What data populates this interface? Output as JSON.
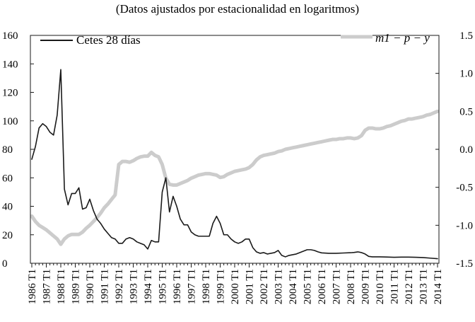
{
  "chart_data": {
    "type": "line",
    "subtitle": "(Datos ajustados por estacionalidad en logaritmos)",
    "x_tick_labels": [
      "1986 T1",
      "1987 T1",
      "1988 T1",
      "1989 T1",
      "1990 T1",
      "1991 T1",
      "1992 T1",
      "1993 T1",
      "1994 T1",
      "1995 T1",
      "1996 T1",
      "1997 T1",
      "1998 T1",
      "1999 T1",
      "2000 T1",
      "2001 T1",
      "2002 T1",
      "2003 T1",
      "2004 T1",
      "2005 T1",
      "2006 T1",
      "2007 T1",
      "2008 T1",
      "2009 T1",
      "2010 T1",
      "2011 T1",
      "2012 T1",
      "2013 T1",
      "2014 T1"
    ],
    "y_left": {
      "lim": [
        0,
        160
      ],
      "ticks": [
        0,
        20,
        40,
        60,
        80,
        100,
        120,
        140,
        160
      ],
      "tick_labels": [
        "0",
        "20",
        "40",
        "60",
        "80",
        "100",
        "120",
        "140",
        "160"
      ]
    },
    "y_right": {
      "lim": [
        -1.5,
        1.5
      ],
      "ticks": [
        -1.5,
        -1.0,
        -0.5,
        0.0,
        0.5,
        1.0,
        1.5
      ],
      "tick_labels": [
        "-1.5",
        "-1.0",
        "-0.5",
        "0.0",
        "0.5",
        "1.0",
        "1.5"
      ]
    },
    "series": [
      {
        "name": "Cetes 28 días",
        "axis": "left",
        "color": "#1a1a1a",
        "points": [
          [
            1986.0,
            73
          ],
          [
            1986.25,
            82
          ],
          [
            1986.5,
            95
          ],
          [
            1986.75,
            98
          ],
          [
            1987.0,
            96
          ],
          [
            1987.25,
            92
          ],
          [
            1987.5,
            90
          ],
          [
            1987.75,
            104
          ],
          [
            1988.0,
            136
          ],
          [
            1988.25,
            52
          ],
          [
            1988.5,
            41
          ],
          [
            1988.75,
            49
          ],
          [
            1989.0,
            49
          ],
          [
            1989.25,
            53
          ],
          [
            1989.5,
            38
          ],
          [
            1989.75,
            39
          ],
          [
            1990.0,
            45
          ],
          [
            1990.25,
            37
          ],
          [
            1990.5,
            31
          ],
          [
            1990.75,
            28
          ],
          [
            1991.0,
            24
          ],
          [
            1991.25,
            21
          ],
          [
            1991.5,
            18
          ],
          [
            1991.75,
            17
          ],
          [
            1992.0,
            14
          ],
          [
            1992.25,
            14
          ],
          [
            1992.5,
            17
          ],
          [
            1992.75,
            18
          ],
          [
            1993.0,
            17
          ],
          [
            1993.25,
            15
          ],
          [
            1993.5,
            14
          ],
          [
            1993.75,
            13
          ],
          [
            1994.0,
            10
          ],
          [
            1994.25,
            16
          ],
          [
            1994.5,
            15
          ],
          [
            1994.75,
            15
          ],
          [
            1995.0,
            50
          ],
          [
            1995.25,
            60
          ],
          [
            1995.5,
            36
          ],
          [
            1995.75,
            47
          ],
          [
            1996.0,
            40
          ],
          [
            1996.25,
            31
          ],
          [
            1996.5,
            27
          ],
          [
            1996.75,
            27
          ],
          [
            1997.0,
            22
          ],
          [
            1997.25,
            20
          ],
          [
            1997.5,
            19
          ],
          [
            1997.75,
            19
          ],
          [
            1998.0,
            19
          ],
          [
            1998.25,
            19
          ],
          [
            1998.5,
            28
          ],
          [
            1998.75,
            33
          ],
          [
            1999.0,
            28
          ],
          [
            1999.25,
            20
          ],
          [
            1999.5,
            20
          ],
          [
            1999.75,
            17
          ],
          [
            2000.0,
            15
          ],
          [
            2000.25,
            14
          ],
          [
            2000.5,
            15
          ],
          [
            2000.75,
            17
          ],
          [
            2001.0,
            17
          ],
          [
            2001.25,
            11
          ],
          [
            2001.5,
            8
          ],
          [
            2001.75,
            7
          ],
          [
            2002.0,
            7.5
          ],
          [
            2002.25,
            6.5
          ],
          [
            2002.5,
            7
          ],
          [
            2002.75,
            7.5
          ],
          [
            2003.0,
            9
          ],
          [
            2003.25,
            5.5
          ],
          [
            2003.5,
            4.5
          ],
          [
            2003.75,
            5.5
          ],
          [
            2004.0,
            6
          ],
          [
            2004.25,
            6.5
          ],
          [
            2004.5,
            7.5
          ],
          [
            2004.75,
            8.5
          ],
          [
            2005.0,
            9.5
          ],
          [
            2005.25,
            9.5
          ],
          [
            2005.5,
            9
          ],
          [
            2005.75,
            8
          ],
          [
            2006.0,
            7.3
          ],
          [
            2006.5,
            7
          ],
          [
            2007.0,
            7
          ],
          [
            2007.5,
            7.2
          ],
          [
            2008.0,
            7.4
          ],
          [
            2008.25,
            7.6
          ],
          [
            2008.5,
            8
          ],
          [
            2008.75,
            7.5
          ],
          [
            2009.0,
            6.5
          ],
          [
            2009.25,
            4.8
          ],
          [
            2009.5,
            4.5
          ],
          [
            2010.0,
            4.5
          ],
          [
            2010.5,
            4.4
          ],
          [
            2011.0,
            4.2
          ],
          [
            2011.5,
            4.3
          ],
          [
            2012.0,
            4.3
          ],
          [
            2012.5,
            4.2
          ],
          [
            2013.0,
            4.0
          ],
          [
            2013.5,
            3.6
          ],
          [
            2014.0,
            3.2
          ]
        ]
      },
      {
        "name": "m1 − p − y",
        "axis": "right",
        "color": "#cccccc",
        "points": [
          [
            1986.0,
            -0.88
          ],
          [
            1986.25,
            -0.95
          ],
          [
            1986.5,
            -1.0
          ],
          [
            1986.75,
            -1.03
          ],
          [
            1987.0,
            -1.06
          ],
          [
            1987.25,
            -1.1
          ],
          [
            1987.5,
            -1.14
          ],
          [
            1987.75,
            -1.18
          ],
          [
            1988.0,
            -1.25
          ],
          [
            1988.25,
            -1.18
          ],
          [
            1988.5,
            -1.14
          ],
          [
            1988.75,
            -1.12
          ],
          [
            1989.0,
            -1.12
          ],
          [
            1989.25,
            -1.12
          ],
          [
            1989.5,
            -1.09
          ],
          [
            1989.75,
            -1.04
          ],
          [
            1990.0,
            -1.0
          ],
          [
            1990.25,
            -0.95
          ],
          [
            1990.5,
            -0.9
          ],
          [
            1990.75,
            -0.84
          ],
          [
            1991.0,
            -0.77
          ],
          [
            1991.25,
            -0.72
          ],
          [
            1991.5,
            -0.66
          ],
          [
            1991.75,
            -0.6
          ],
          [
            1992.0,
            -0.2
          ],
          [
            1992.25,
            -0.16
          ],
          [
            1992.5,
            -0.16
          ],
          [
            1992.75,
            -0.17
          ],
          [
            1993.0,
            -0.15
          ],
          [
            1993.25,
            -0.12
          ],
          [
            1993.5,
            -0.1
          ],
          [
            1993.75,
            -0.09
          ],
          [
            1994.0,
            -0.09
          ],
          [
            1994.25,
            -0.04
          ],
          [
            1994.5,
            -0.08
          ],
          [
            1994.75,
            -0.1
          ],
          [
            1995.0,
            -0.2
          ],
          [
            1995.25,
            -0.38
          ],
          [
            1995.5,
            -0.46
          ],
          [
            1995.75,
            -0.47
          ],
          [
            1996.0,
            -0.47
          ],
          [
            1996.25,
            -0.45
          ],
          [
            1996.5,
            -0.43
          ],
          [
            1996.75,
            -0.41
          ],
          [
            1997.0,
            -0.38
          ],
          [
            1997.25,
            -0.36
          ],
          [
            1997.5,
            -0.34
          ],
          [
            1997.75,
            -0.33
          ],
          [
            1998.0,
            -0.32
          ],
          [
            1998.25,
            -0.32
          ],
          [
            1998.5,
            -0.33
          ],
          [
            1998.75,
            -0.34
          ],
          [
            1999.0,
            -0.37
          ],
          [
            1999.25,
            -0.36
          ],
          [
            1999.5,
            -0.33
          ],
          [
            1999.75,
            -0.31
          ],
          [
            2000.0,
            -0.29
          ],
          [
            2000.25,
            -0.28
          ],
          [
            2000.5,
            -0.27
          ],
          [
            2000.75,
            -0.26
          ],
          [
            2001.0,
            -0.24
          ],
          [
            2001.25,
            -0.2
          ],
          [
            2001.5,
            -0.14
          ],
          [
            2001.75,
            -0.1
          ],
          [
            2002.0,
            -0.08
          ],
          [
            2002.25,
            -0.07
          ],
          [
            2002.5,
            -0.06
          ],
          [
            2002.75,
            -0.05
          ],
          [
            2003.0,
            -0.03
          ],
          [
            2003.25,
            -0.02
          ],
          [
            2003.5,
            0.0
          ],
          [
            2003.75,
            0.01
          ],
          [
            2004.0,
            0.02
          ],
          [
            2004.25,
            0.03
          ],
          [
            2004.5,
            0.04
          ],
          [
            2004.75,
            0.05
          ],
          [
            2005.0,
            0.06
          ],
          [
            2005.25,
            0.07
          ],
          [
            2005.5,
            0.08
          ],
          [
            2005.75,
            0.09
          ],
          [
            2006.0,
            0.1
          ],
          [
            2006.25,
            0.11
          ],
          [
            2006.5,
            0.12
          ],
          [
            2006.75,
            0.13
          ],
          [
            2007.0,
            0.13
          ],
          [
            2007.25,
            0.14
          ],
          [
            2007.5,
            0.14
          ],
          [
            2007.75,
            0.15
          ],
          [
            2008.0,
            0.15
          ],
          [
            2008.25,
            0.14
          ],
          [
            2008.5,
            0.15
          ],
          [
            2008.75,
            0.18
          ],
          [
            2009.0,
            0.25
          ],
          [
            2009.25,
            0.28
          ],
          [
            2009.5,
            0.28
          ],
          [
            2009.75,
            0.27
          ],
          [
            2010.0,
            0.27
          ],
          [
            2010.25,
            0.28
          ],
          [
            2010.5,
            0.3
          ],
          [
            2010.75,
            0.31
          ],
          [
            2011.0,
            0.33
          ],
          [
            2011.25,
            0.35
          ],
          [
            2011.5,
            0.37
          ],
          [
            2011.75,
            0.38
          ],
          [
            2012.0,
            0.4
          ],
          [
            2012.25,
            0.4
          ],
          [
            2012.5,
            0.41
          ],
          [
            2012.75,
            0.42
          ],
          [
            2013.0,
            0.43
          ],
          [
            2013.25,
            0.45
          ],
          [
            2013.5,
            0.46
          ],
          [
            2013.75,
            0.48
          ],
          [
            2014.0,
            0.5
          ]
        ]
      }
    ],
    "legend": [
      {
        "label": "Cetes 28 días",
        "placement": "top-left"
      },
      {
        "label": "m1 − p − y",
        "placement": "top-right"
      }
    ]
  }
}
